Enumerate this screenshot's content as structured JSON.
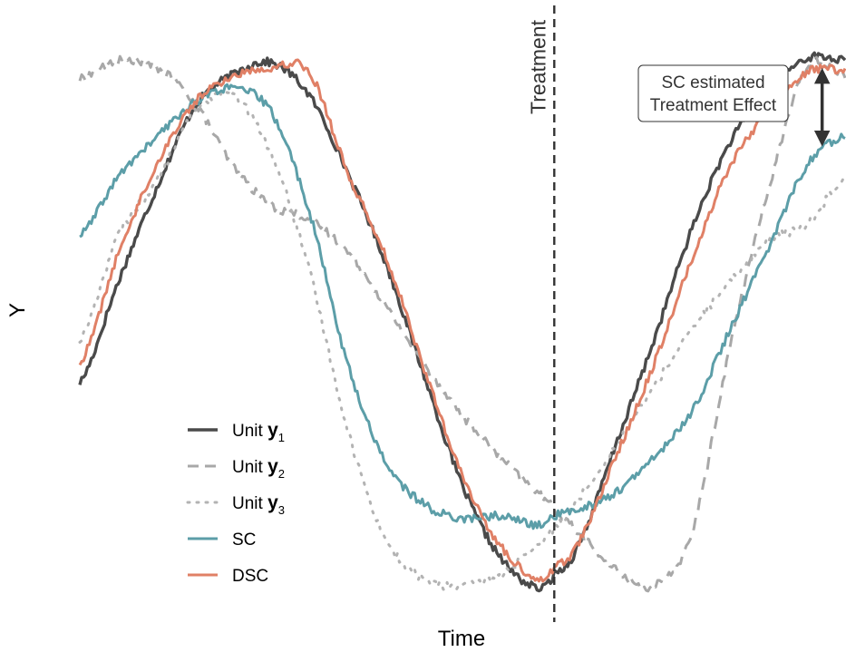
{
  "chart_data": {
    "type": "line",
    "xlabel": "Time",
    "ylabel": "Y",
    "xlim": [
      0,
      100
    ],
    "ylim": [
      -1.25,
      1.25
    ],
    "grid": false,
    "legend_position": "bottom-left",
    "treatment": {
      "x": 62,
      "label": "Treatment"
    },
    "annotation": {
      "lines": [
        "SC estimated",
        "Treatment Effect"
      ],
      "x": 97,
      "y_from": 1.07,
      "y_to": 0.73
    },
    "series": [
      {
        "key": "y1",
        "legend": {
          "prefix": "Unit ",
          "bold": "y",
          "sub": "1"
        },
        "color": "#4a4a4a",
        "dash": "",
        "width": 3.4,
        "x": [
          0,
          5,
          10,
          15,
          20,
          25,
          30,
          35,
          40,
          45,
          50,
          55,
          60,
          62,
          65,
          70,
          75,
          80,
          85,
          90,
          95,
          100
        ],
        "y": [
          -0.28,
          0.15,
          0.55,
          0.9,
          1.04,
          1.09,
          0.95,
          0.62,
          0.23,
          -0.25,
          -0.72,
          -1.03,
          -1.16,
          -1.1,
          -0.98,
          -0.55,
          -0.1,
          0.38,
          0.75,
          0.97,
          1.11,
          1.1
        ]
      },
      {
        "key": "y2",
        "legend": {
          "prefix": "Unit ",
          "bold": "y",
          "sub": "2"
        },
        "color": "#a8a8a8",
        "dash": "14 9",
        "width": 3.0,
        "x": [
          0,
          5,
          10,
          15,
          20,
          25,
          30,
          35,
          40,
          45,
          50,
          55,
          60,
          62,
          65,
          70,
          75,
          80,
          85,
          90,
          95,
          100
        ],
        "y": [
          1.02,
          1.1,
          1.07,
          0.92,
          0.65,
          0.48,
          0.42,
          0.28,
          0.05,
          -0.2,
          -0.42,
          -0.6,
          -0.75,
          -0.82,
          -0.92,
          -1.08,
          -1.15,
          -0.92,
          -0.12,
          0.55,
          1.07,
          1.04
        ]
      },
      {
        "key": "y3",
        "legend": {
          "prefix": "Unit ",
          "bold": "y",
          "sub": "3"
        },
        "color": "#b3b3b3",
        "dash": "2 9",
        "width": 3.0,
        "x": [
          0,
          5,
          10,
          15,
          20,
          25,
          30,
          35,
          40,
          45,
          50,
          55,
          60,
          62,
          65,
          70,
          75,
          80,
          85,
          90,
          95,
          100
        ],
        "y": [
          -0.1,
          0.35,
          0.58,
          0.88,
          0.95,
          0.7,
          0.2,
          -0.48,
          -0.95,
          -1.12,
          -1.15,
          -1.1,
          -0.98,
          -0.9,
          -0.78,
          -0.55,
          -0.3,
          -0.05,
          0.15,
          0.33,
          0.4,
          0.6
        ]
      },
      {
        "key": "sc",
        "legend": {
          "prefix": "SC",
          "bold": "",
          "sub": ""
        },
        "color": "#5c9ea8",
        "dash": "",
        "width": 3.0,
        "x": [
          0,
          5,
          10,
          15,
          20,
          25,
          30,
          35,
          40,
          45,
          50,
          55,
          60,
          62,
          65,
          70,
          75,
          80,
          85,
          90,
          95,
          100
        ],
        "y": [
          0.35,
          0.6,
          0.77,
          0.92,
          0.98,
          0.88,
          0.45,
          -0.2,
          -0.62,
          -0.8,
          -0.86,
          -0.85,
          -0.89,
          -0.85,
          -0.82,
          -0.75,
          -0.6,
          -0.4,
          -0.05,
          0.3,
          0.65,
          0.78
        ]
      },
      {
        "key": "dsc",
        "legend": {
          "prefix": "DSC",
          "bold": "",
          "sub": ""
        },
        "color": "#e08066",
        "dash": "",
        "width": 3.0,
        "x": [
          0,
          5,
          10,
          15,
          20,
          25,
          30,
          35,
          40,
          45,
          50,
          55,
          60,
          62,
          65,
          70,
          75,
          80,
          85,
          90,
          95,
          100
        ],
        "y": [
          -0.2,
          0.27,
          0.65,
          0.92,
          1.03,
          1.07,
          1.05,
          0.62,
          0.26,
          -0.22,
          -0.68,
          -0.98,
          -1.12,
          -1.07,
          -0.97,
          -0.6,
          -0.2,
          0.25,
          0.65,
          0.88,
          1.05,
          1.06
        ]
      }
    ]
  }
}
